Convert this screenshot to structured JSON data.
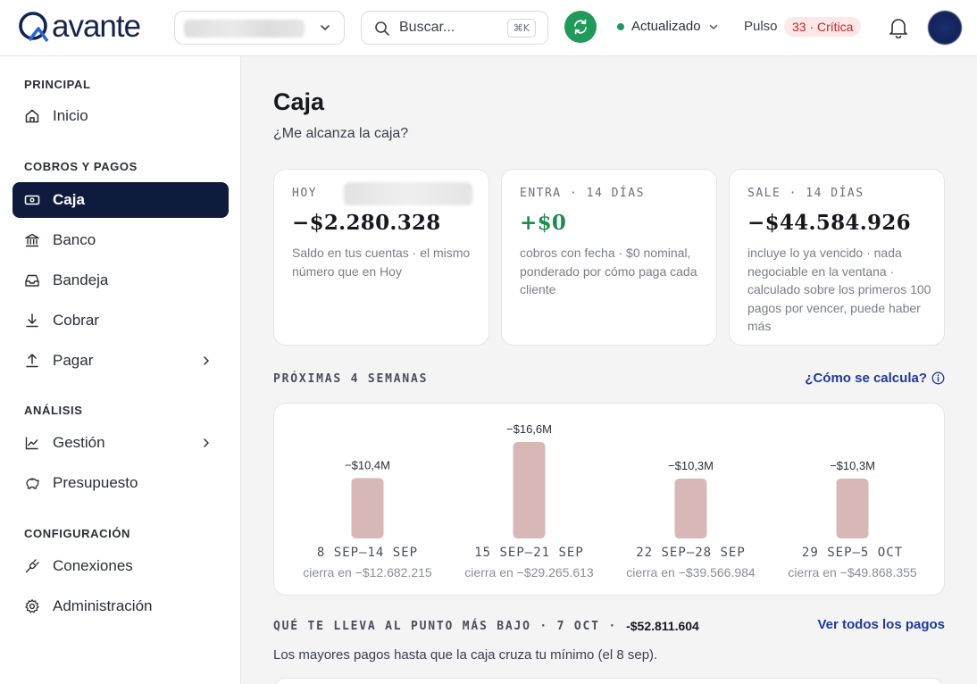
{
  "header": {
    "logo_text": "avante",
    "search_placeholder": "Buscar...",
    "search_shortcut": "⌘K",
    "status_label": "Actualizado",
    "pulse_label": "Pulso",
    "pulse_badge": "33 · Crítica",
    "colors": {
      "brand": "#16224e",
      "sync": "#1f9a5b",
      "critical": "#c4262e"
    }
  },
  "sidebar": {
    "sections": [
      {
        "label": "PRINCIPAL",
        "items": [
          {
            "label": "Inicio",
            "icon": "home-icon"
          }
        ]
      },
      {
        "label": "COBROS Y PAGOS",
        "items": [
          {
            "label": "Caja",
            "icon": "cash-icon",
            "active": true
          },
          {
            "label": "Banco",
            "icon": "bank-icon"
          },
          {
            "label": "Bandeja",
            "icon": "inbox-icon"
          },
          {
            "label": "Cobrar",
            "icon": "download-icon"
          },
          {
            "label": "Pagar",
            "icon": "upload-icon",
            "has_submenu": true
          }
        ]
      },
      {
        "label": "ANÁLISIS",
        "items": [
          {
            "label": "Gestión",
            "icon": "chart-line-icon",
            "has_submenu": true
          },
          {
            "label": "Presupuesto",
            "icon": "piggy-bank-icon"
          }
        ]
      },
      {
        "label": "CONFIGURACIÓN",
        "items": [
          {
            "label": "Conexiones",
            "icon": "plug-icon"
          },
          {
            "label": "Administración",
            "icon": "gear-icon"
          }
        ]
      }
    ]
  },
  "main": {
    "title": "Caja",
    "subtitle": "¿Me alcanza la caja?",
    "cards": [
      {
        "label": "HOY",
        "value": "−$2.280.328",
        "desc": "Saldo en tus cuentas · el mismo número que en Hoy"
      },
      {
        "label": "ENTRA · 14 DÍAS",
        "value": "+$0",
        "desc": "cobros con fecha · $0 nominal, ponderado por cómo paga cada cliente"
      },
      {
        "label": "SALE · 14 DÍAS",
        "value": "−$44.584.926",
        "desc": "incluye lo ya vencido · nada negociable en la ventana · calculado sobre los primeros 100 pagos por vencer, puede haber más"
      }
    ],
    "weeks_label": "PRÓXIMAS 4 SEMANAS",
    "how_link": "¿Cómo se calcula?",
    "lowpoint_label": "QUÉ TE LLEVA AL PUNTO MÁS BAJO · 7 OCT ·",
    "lowpoint_value": "-$52.811.604",
    "all_payments_link": "Ver todos los pagos",
    "lowpoint_desc": "Los mayores pagos hasta que la caja cruza tu mínimo (el 8 sep)."
  },
  "chart_data": {
    "type": "bar",
    "categories": [
      "8 SEP–14 SEP",
      "15 SEP–21 SEP",
      "22 SEP–28 SEP",
      "29 SEP–5 OCT"
    ],
    "values": [
      -10.4,
      -16.6,
      -10.3,
      -10.3
    ],
    "value_labels": [
      "−$10,4M",
      "−$16,6M",
      "−$10,3M",
      "−$10,3M"
    ],
    "closing_labels": [
      "cierra en −$12.682.215",
      "cierra en −$29.265.613",
      "cierra en −$39.566.984",
      "cierra en −$49.868.355"
    ],
    "bar_color": "#d8b8b6"
  }
}
